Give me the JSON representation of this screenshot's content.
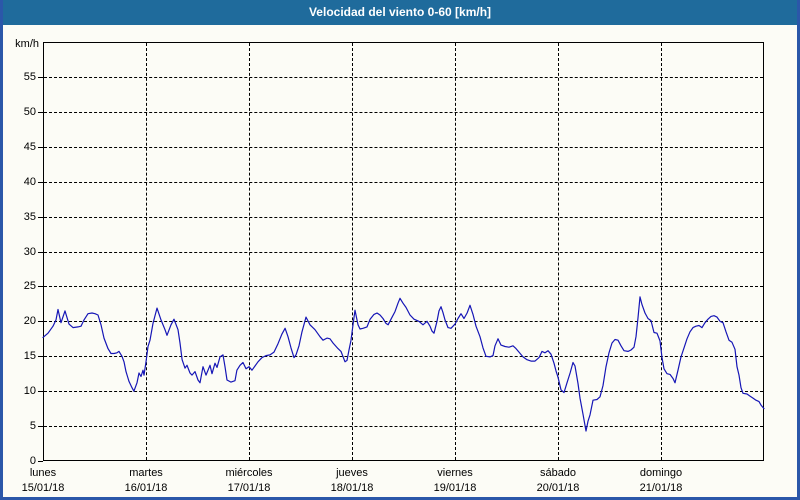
{
  "window": {
    "title": "Velocidad del viento 0-60 [km/h]"
  },
  "colors": {
    "title_bar": "#1f6b9c",
    "frame_border": "#2b57a9",
    "background": "#fcfcf6",
    "grid": "#000000",
    "series_line": "#1616b6",
    "title_text": "#ffffff",
    "axis_text": "#000000"
  },
  "chart_data": {
    "type": "line",
    "title": "Velocidad del viento 0-60 [km/h]",
    "y_unit_label": "km/h",
    "ylabel": "km/h",
    "xlabel": "",
    "ylim": [
      0,
      60
    ],
    "yticks_labeled": [
      0,
      5,
      10,
      15,
      20,
      25,
      30,
      35,
      40,
      45,
      50,
      55
    ],
    "x_range_days": [
      0,
      7
    ],
    "grid": "dashed",
    "legend_position": "none",
    "x_categories": [
      {
        "day": "lunes",
        "date": "15/01/18"
      },
      {
        "day": "martes",
        "date": "16/01/18"
      },
      {
        "day": "miércoles",
        "date": "17/01/18"
      },
      {
        "day": "jueves",
        "date": "18/01/18"
      },
      {
        "day": "viernes",
        "date": "19/01/18"
      },
      {
        "day": "sábado",
        "date": "20/01/18"
      },
      {
        "day": "domingo",
        "date": "21/01/18"
      }
    ],
    "series": [
      {
        "name": "velocidad del viento (km/h)",
        "color": "#1616b6",
        "x_unit": "days since lunes 15/01/18 00:00",
        "points": [
          [
            0.0,
            17.7
          ],
          [
            0.049,
            18.3
          ],
          [
            0.097,
            19.3
          ],
          [
            0.126,
            20.2
          ],
          [
            0.146,
            21.7
          ],
          [
            0.175,
            19.8
          ],
          [
            0.214,
            21.5
          ],
          [
            0.252,
            19.6
          ],
          [
            0.291,
            19.1
          ],
          [
            0.34,
            19.2
          ],
          [
            0.369,
            19.3
          ],
          [
            0.398,
            20.2
          ],
          [
            0.437,
            21.1
          ],
          [
            0.476,
            21.2
          ],
          [
            0.505,
            21.1
          ],
          [
            0.534,
            20.9
          ],
          [
            0.563,
            19.5
          ],
          [
            0.592,
            17.6
          ],
          [
            0.631,
            16.1
          ],
          [
            0.66,
            15.4
          ],
          [
            0.689,
            15.4
          ],
          [
            0.718,
            15.5
          ],
          [
            0.738,
            15.7
          ],
          [
            0.767,
            15.0
          ],
          [
            0.786,
            14.2
          ],
          [
            0.806,
            12.8
          ],
          [
            0.835,
            11.4
          ],
          [
            0.864,
            10.5
          ],
          [
            0.883,
            10.0
          ],
          [
            0.913,
            11.2
          ],
          [
            0.932,
            12.6
          ],
          [
            0.951,
            12.1
          ],
          [
            0.971,
            13.0
          ],
          [
            0.981,
            12.3
          ],
          [
            1.0,
            14.2
          ],
          [
            1.019,
            16.4
          ],
          [
            1.039,
            17.3
          ],
          [
            1.068,
            19.7
          ],
          [
            1.107,
            21.9
          ],
          [
            1.146,
            20.2
          ],
          [
            1.184,
            18.8
          ],
          [
            1.204,
            18.0
          ],
          [
            1.243,
            19.5
          ],
          [
            1.272,
            20.3
          ],
          [
            1.311,
            18.8
          ],
          [
            1.33,
            16.9
          ],
          [
            1.35,
            14.5
          ],
          [
            1.379,
            13.3
          ],
          [
            1.398,
            13.7
          ],
          [
            1.427,
            12.6
          ],
          [
            1.447,
            12.3
          ],
          [
            1.476,
            12.8
          ],
          [
            1.505,
            11.6
          ],
          [
            1.524,
            11.2
          ],
          [
            1.553,
            13.5
          ],
          [
            1.583,
            12.3
          ],
          [
            1.621,
            13.7
          ],
          [
            1.641,
            12.5
          ],
          [
            1.67,
            14.0
          ],
          [
            1.689,
            13.4
          ],
          [
            1.718,
            14.9
          ],
          [
            1.748,
            15.2
          ],
          [
            1.767,
            13.5
          ],
          [
            1.786,
            11.6
          ],
          [
            1.825,
            11.3
          ],
          [
            1.864,
            11.5
          ],
          [
            1.883,
            13.0
          ],
          [
            1.913,
            13.7
          ],
          [
            1.942,
            14.1
          ],
          [
            1.971,
            13.2
          ],
          [
            2.0,
            13.5
          ],
          [
            2.029,
            13.0
          ],
          [
            2.058,
            13.6
          ],
          [
            2.087,
            14.2
          ],
          [
            2.126,
            14.8
          ],
          [
            2.165,
            15.1
          ],
          [
            2.204,
            15.2
          ],
          [
            2.243,
            15.6
          ],
          [
            2.282,
            16.8
          ],
          [
            2.32,
            18.2
          ],
          [
            2.35,
            19.0
          ],
          [
            2.379,
            17.8
          ],
          [
            2.408,
            16.2
          ],
          [
            2.437,
            14.8
          ],
          [
            2.456,
            15.2
          ],
          [
            2.485,
            16.5
          ],
          [
            2.515,
            18.5
          ],
          [
            2.553,
            20.6
          ],
          [
            2.592,
            19.5
          ],
          [
            2.641,
            18.8
          ],
          [
            2.689,
            17.8
          ],
          [
            2.718,
            17.3
          ],
          [
            2.757,
            17.6
          ],
          [
            2.786,
            17.5
          ],
          [
            2.816,
            16.9
          ],
          [
            2.864,
            16.1
          ],
          [
            2.893,
            15.7
          ],
          [
            2.932,
            14.2
          ],
          [
            2.951,
            14.4
          ],
          [
            2.971,
            15.9
          ],
          [
            2.99,
            17.3
          ],
          [
            3.01,
            19.5
          ],
          [
            3.029,
            21.6
          ],
          [
            3.058,
            19.5
          ],
          [
            3.078,
            18.9
          ],
          [
            3.107,
            19.0
          ],
          [
            3.146,
            19.2
          ],
          [
            3.176,
            20.3
          ],
          [
            3.214,
            21.0
          ],
          [
            3.243,
            21.2
          ],
          [
            3.272,
            20.9
          ],
          [
            3.301,
            20.4
          ],
          [
            3.33,
            19.7
          ],
          [
            3.35,
            19.5
          ],
          [
            3.379,
            20.3
          ],
          [
            3.417,
            21.4
          ],
          [
            3.447,
            22.6
          ],
          [
            3.466,
            23.3
          ],
          [
            3.495,
            22.6
          ],
          [
            3.524,
            22.0
          ],
          [
            3.563,
            20.9
          ],
          [
            3.602,
            20.3
          ],
          [
            3.65,
            20.0
          ],
          [
            3.689,
            19.5
          ],
          [
            3.728,
            20.0
          ],
          [
            3.757,
            19.3
          ],
          [
            3.777,
            18.6
          ],
          [
            3.796,
            18.3
          ],
          [
            3.825,
            20.0
          ],
          [
            3.845,
            21.5
          ],
          [
            3.864,
            22.1
          ],
          [
            3.883,
            21.3
          ],
          [
            3.903,
            20.2
          ],
          [
            3.932,
            19.1
          ],
          [
            3.961,
            19.0
          ],
          [
            4.0,
            19.6
          ],
          [
            4.029,
            20.4
          ],
          [
            4.058,
            21.1
          ],
          [
            4.087,
            20.4
          ],
          [
            4.117,
            21.2
          ],
          [
            4.146,
            22.3
          ],
          [
            4.175,
            21.0
          ],
          [
            4.204,
            19.3
          ],
          [
            4.243,
            17.8
          ],
          [
            4.272,
            16.2
          ],
          [
            4.301,
            15.0
          ],
          [
            4.34,
            14.9
          ],
          [
            4.369,
            15.1
          ],
          [
            4.388,
            16.5
          ],
          [
            4.417,
            17.5
          ],
          [
            4.447,
            16.6
          ],
          [
            4.485,
            16.4
          ],
          [
            4.524,
            16.3
          ],
          [
            4.563,
            16.5
          ],
          [
            4.592,
            16.1
          ],
          [
            4.621,
            15.6
          ],
          [
            4.66,
            14.9
          ],
          [
            4.699,
            14.5
          ],
          [
            4.738,
            14.3
          ],
          [
            4.777,
            14.3
          ],
          [
            4.816,
            14.8
          ],
          [
            4.845,
            15.7
          ],
          [
            4.874,
            15.5
          ],
          [
            4.903,
            15.8
          ],
          [
            4.932,
            15.3
          ],
          [
            4.961,
            14.0
          ],
          [
            4.981,
            12.9
          ],
          [
            5.0,
            12.0
          ],
          [
            5.029,
            10.2
          ],
          [
            5.058,
            9.8
          ],
          [
            5.087,
            11.2
          ],
          [
            5.117,
            12.6
          ],
          [
            5.146,
            14.1
          ],
          [
            5.165,
            13.6
          ],
          [
            5.194,
            11.1
          ],
          [
            5.214,
            9.0
          ],
          [
            5.243,
            6.7
          ],
          [
            5.272,
            4.3
          ],
          [
            5.291,
            5.7
          ],
          [
            5.311,
            6.6
          ],
          [
            5.34,
            8.7
          ],
          [
            5.379,
            8.8
          ],
          [
            5.408,
            9.2
          ],
          [
            5.437,
            10.8
          ],
          [
            5.466,
            13.5
          ],
          [
            5.495,
            15.5
          ],
          [
            5.524,
            16.9
          ],
          [
            5.553,
            17.4
          ],
          [
            5.583,
            17.3
          ],
          [
            5.612,
            16.5
          ],
          [
            5.641,
            15.8
          ],
          [
            5.68,
            15.7
          ],
          [
            5.709,
            15.9
          ],
          [
            5.738,
            16.3
          ],
          [
            5.757,
            17.8
          ],
          [
            5.777,
            20.5
          ],
          [
            5.796,
            23.5
          ],
          [
            5.816,
            22.4
          ],
          [
            5.845,
            21.2
          ],
          [
            5.874,
            20.4
          ],
          [
            5.903,
            20.1
          ],
          [
            5.932,
            18.4
          ],
          [
            5.961,
            18.3
          ],
          [
            5.99,
            17.2
          ],
          [
            6.01,
            14.8
          ],
          [
            6.029,
            13.2
          ],
          [
            6.058,
            12.5
          ],
          [
            6.087,
            12.4
          ],
          [
            6.117,
            11.8
          ],
          [
            6.136,
            11.2
          ],
          [
            6.165,
            13.0
          ],
          [
            6.194,
            14.9
          ],
          [
            6.223,
            16.2
          ],
          [
            6.252,
            17.5
          ],
          [
            6.282,
            18.5
          ],
          [
            6.311,
            19.1
          ],
          [
            6.34,
            19.3
          ],
          [
            6.369,
            19.4
          ],
          [
            6.398,
            19.1
          ],
          [
            6.427,
            19.8
          ],
          [
            6.456,
            20.3
          ],
          [
            6.485,
            20.7
          ],
          [
            6.515,
            20.8
          ],
          [
            6.544,
            20.6
          ],
          [
            6.573,
            20.0
          ],
          [
            6.602,
            19.8
          ],
          [
            6.631,
            18.5
          ],
          [
            6.66,
            17.3
          ],
          [
            6.689,
            17.0
          ],
          [
            6.718,
            16.0
          ],
          [
            6.738,
            13.5
          ],
          [
            6.757,
            12.3
          ],
          [
            6.777,
            10.5
          ],
          [
            6.796,
            9.7
          ],
          [
            6.835,
            9.6
          ],
          [
            6.864,
            9.3
          ],
          [
            6.893,
            9.0
          ],
          [
            6.922,
            8.7
          ],
          [
            6.951,
            8.5
          ],
          [
            6.971,
            8.0
          ],
          [
            7.0,
            7.5
          ]
        ]
      }
    ]
  }
}
